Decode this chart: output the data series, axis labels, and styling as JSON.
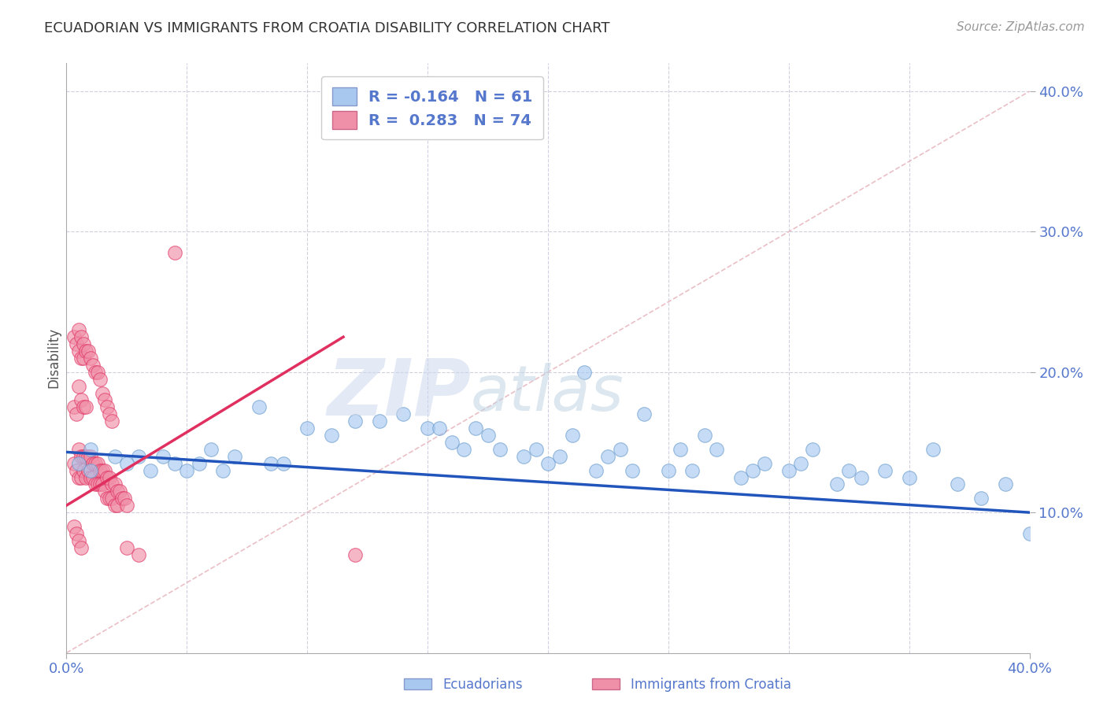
{
  "title": "ECUADORIAN VS IMMIGRANTS FROM CROATIA DISABILITY CORRELATION CHART",
  "source": "Source: ZipAtlas.com",
  "ylabel": "Disability",
  "x_min": 0.0,
  "x_max": 0.4,
  "y_min": 0.0,
  "y_max": 0.42,
  "legend_text1": "R = -0.164   N = 61",
  "legend_text2": "R =  0.283   N = 74",
  "blue_color": "#a8c8f0",
  "pink_color": "#f090a8",
  "trend_blue_color": "#2255bb",
  "trend_pink_color": "#e03060",
  "ref_line_color": "#e8b8c0",
  "grid_color": "#d0d0e0",
  "tick_color": "#5577cc",
  "watermark_zip_color": "#c8d8f0",
  "watermark_atlas_color": "#c8d8e8",
  "blue_scatter_x": [
    0.005,
    0.01,
    0.01,
    0.02,
    0.025,
    0.03,
    0.035,
    0.04,
    0.045,
    0.05,
    0.055,
    0.06,
    0.065,
    0.07,
    0.08,
    0.085,
    0.09,
    0.1,
    0.11,
    0.12,
    0.13,
    0.14,
    0.15,
    0.155,
    0.16,
    0.165,
    0.17,
    0.175,
    0.18,
    0.19,
    0.195,
    0.2,
    0.205,
    0.21,
    0.215,
    0.22,
    0.225,
    0.23,
    0.235,
    0.24,
    0.25,
    0.255,
    0.26,
    0.265,
    0.27,
    0.28,
    0.285,
    0.29,
    0.3,
    0.305,
    0.31,
    0.32,
    0.325,
    0.33,
    0.34,
    0.35,
    0.36,
    0.37,
    0.38,
    0.39,
    0.4
  ],
  "blue_scatter_y": [
    0.135,
    0.145,
    0.13,
    0.14,
    0.135,
    0.14,
    0.13,
    0.14,
    0.135,
    0.13,
    0.135,
    0.145,
    0.13,
    0.14,
    0.175,
    0.135,
    0.135,
    0.16,
    0.155,
    0.165,
    0.165,
    0.17,
    0.16,
    0.16,
    0.15,
    0.145,
    0.16,
    0.155,
    0.145,
    0.14,
    0.145,
    0.135,
    0.14,
    0.155,
    0.2,
    0.13,
    0.14,
    0.145,
    0.13,
    0.17,
    0.13,
    0.145,
    0.13,
    0.155,
    0.145,
    0.125,
    0.13,
    0.135,
    0.13,
    0.135,
    0.145,
    0.12,
    0.13,
    0.125,
    0.13,
    0.125,
    0.145,
    0.12,
    0.11,
    0.12,
    0.085
  ],
  "pink_scatter_x": [
    0.003,
    0.004,
    0.005,
    0.005,
    0.006,
    0.006,
    0.007,
    0.007,
    0.008,
    0.008,
    0.009,
    0.009,
    0.01,
    0.01,
    0.011,
    0.011,
    0.012,
    0.012,
    0.013,
    0.013,
    0.014,
    0.014,
    0.015,
    0.015,
    0.016,
    0.016,
    0.017,
    0.017,
    0.018,
    0.018,
    0.019,
    0.019,
    0.02,
    0.02,
    0.021,
    0.021,
    0.022,
    0.023,
    0.024,
    0.025,
    0.003,
    0.004,
    0.005,
    0.005,
    0.006,
    0.006,
    0.007,
    0.007,
    0.008,
    0.009,
    0.01,
    0.011,
    0.012,
    0.013,
    0.014,
    0.015,
    0.016,
    0.017,
    0.018,
    0.019,
    0.003,
    0.004,
    0.005,
    0.006,
    0.007,
    0.008,
    0.12,
    0.045,
    0.025,
    0.03,
    0.003,
    0.004,
    0.005,
    0.006
  ],
  "pink_scatter_y": [
    0.135,
    0.13,
    0.145,
    0.125,
    0.14,
    0.125,
    0.14,
    0.13,
    0.14,
    0.125,
    0.14,
    0.13,
    0.14,
    0.125,
    0.135,
    0.125,
    0.135,
    0.12,
    0.135,
    0.12,
    0.13,
    0.12,
    0.13,
    0.12,
    0.13,
    0.115,
    0.125,
    0.11,
    0.125,
    0.11,
    0.12,
    0.11,
    0.12,
    0.105,
    0.115,
    0.105,
    0.115,
    0.11,
    0.11,
    0.105,
    0.225,
    0.22,
    0.23,
    0.215,
    0.225,
    0.21,
    0.22,
    0.21,
    0.215,
    0.215,
    0.21,
    0.205,
    0.2,
    0.2,
    0.195,
    0.185,
    0.18,
    0.175,
    0.17,
    0.165,
    0.175,
    0.17,
    0.19,
    0.18,
    0.175,
    0.175,
    0.07,
    0.285,
    0.075,
    0.07,
    0.09,
    0.085,
    0.08,
    0.075
  ],
  "blue_trend_x0": 0.0,
  "blue_trend_y0": 0.143,
  "blue_trend_x1": 0.4,
  "blue_trend_y1": 0.1,
  "pink_trend_x0": 0.0,
  "pink_trend_y0": 0.105,
  "pink_trend_x1": 0.115,
  "pink_trend_y1": 0.225
}
